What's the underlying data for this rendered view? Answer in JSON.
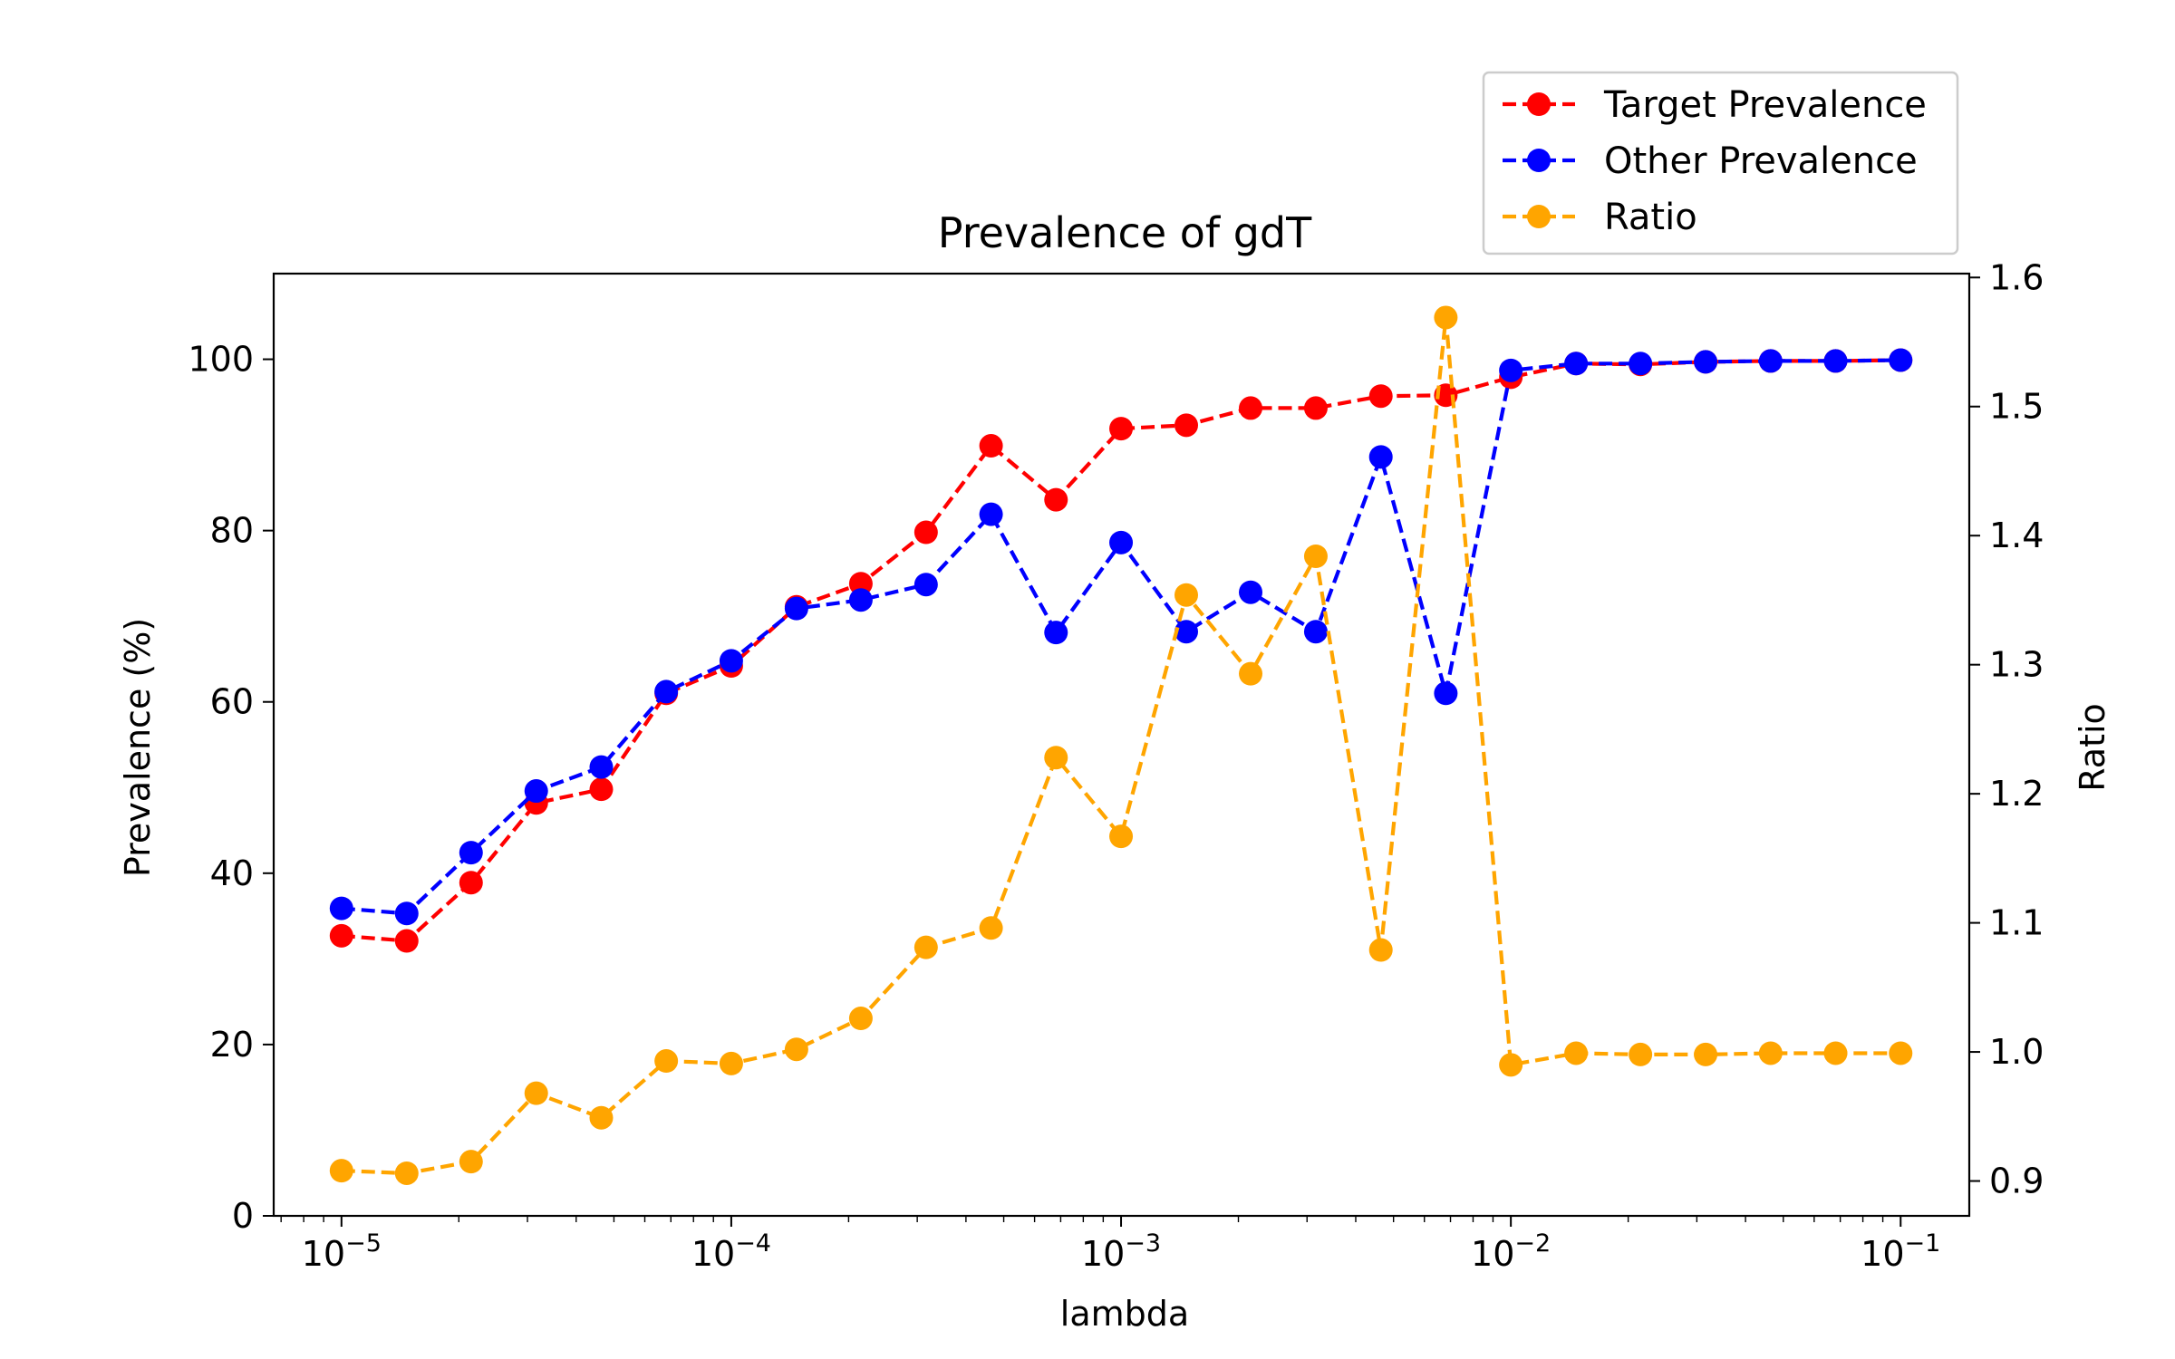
{
  "chart_data": {
    "type": "line",
    "title": "Prevalence of gdT",
    "xlabel": "lambda",
    "ylabel": "Prevalence (%)",
    "y2label": "Ratio",
    "xscale": "log",
    "x_ticks": [
      {
        "value": 1e-05,
        "base": "10",
        "exp": "−5"
      },
      {
        "value": 0.0001,
        "base": "10",
        "exp": "−4"
      },
      {
        "value": 0.001,
        "base": "10",
        "exp": "−3"
      },
      {
        "value": 0.01,
        "base": "10",
        "exp": "−2"
      },
      {
        "value": 0.1,
        "base": "10",
        "exp": "−1"
      }
    ],
    "xlim": [
      6.7e-06,
      0.15
    ],
    "ylim": [
      0,
      110
    ],
    "y_ticks": [
      0,
      20,
      40,
      60,
      80,
      100
    ],
    "y2lim": [
      0.873,
      1.603
    ],
    "y2_ticks": [
      0.9,
      1.0,
      1.1,
      1.2,
      1.3,
      1.4,
      1.5,
      1.6
    ],
    "y2_tick_labels": [
      "0.9",
      "1.0",
      "1.1",
      "1.2",
      "1.3",
      "1.4",
      "1.5",
      "1.6"
    ],
    "legend_position": "top-right, above plot",
    "x": [
      1e-05,
      1.47e-05,
      2.15e-05,
      3.16e-05,
      4.64e-05,
      6.81e-05,
      0.0001,
      0.000147,
      0.000215,
      0.000316,
      0.000464,
      0.000681,
      0.001,
      0.00147,
      0.00215,
      0.00316,
      0.00464,
      0.00681,
      0.01,
      0.0147,
      0.0215,
      0.0316,
      0.0464,
      0.0681,
      0.1
    ],
    "series": [
      {
        "name": "Target Prevalence",
        "axis": "left",
        "color": "#ff0000",
        "values": [
          32.7,
          32.1,
          38.9,
          48.2,
          49.8,
          61.0,
          64.2,
          71.1,
          73.8,
          79.8,
          89.9,
          83.6,
          91.9,
          92.3,
          94.3,
          94.3,
          95.7,
          95.8,
          97.9,
          99.5,
          99.4,
          99.7,
          99.8,
          99.8,
          99.9
        ]
      },
      {
        "name": "Other Prevalence",
        "axis": "left",
        "color": "#0000ff",
        "values": [
          35.9,
          35.3,
          42.4,
          49.6,
          52.4,
          61.2,
          64.8,
          70.9,
          71.9,
          73.7,
          81.9,
          68.1,
          78.6,
          68.2,
          72.8,
          68.2,
          88.6,
          61.0,
          98.7,
          99.5,
          99.5,
          99.7,
          99.8,
          99.8,
          99.9
        ]
      },
      {
        "name": "Ratio",
        "axis": "right",
        "color": "#ffa500",
        "values": [
          0.908,
          0.906,
          0.915,
          0.968,
          0.949,
          0.993,
          0.991,
          1.002,
          1.026,
          1.081,
          1.096,
          1.228,
          1.167,
          1.354,
          1.293,
          1.384,
          1.079,
          1.569,
          0.99,
          0.999,
          0.998,
          0.998,
          0.999,
          0.999,
          0.999
        ]
      }
    ]
  }
}
